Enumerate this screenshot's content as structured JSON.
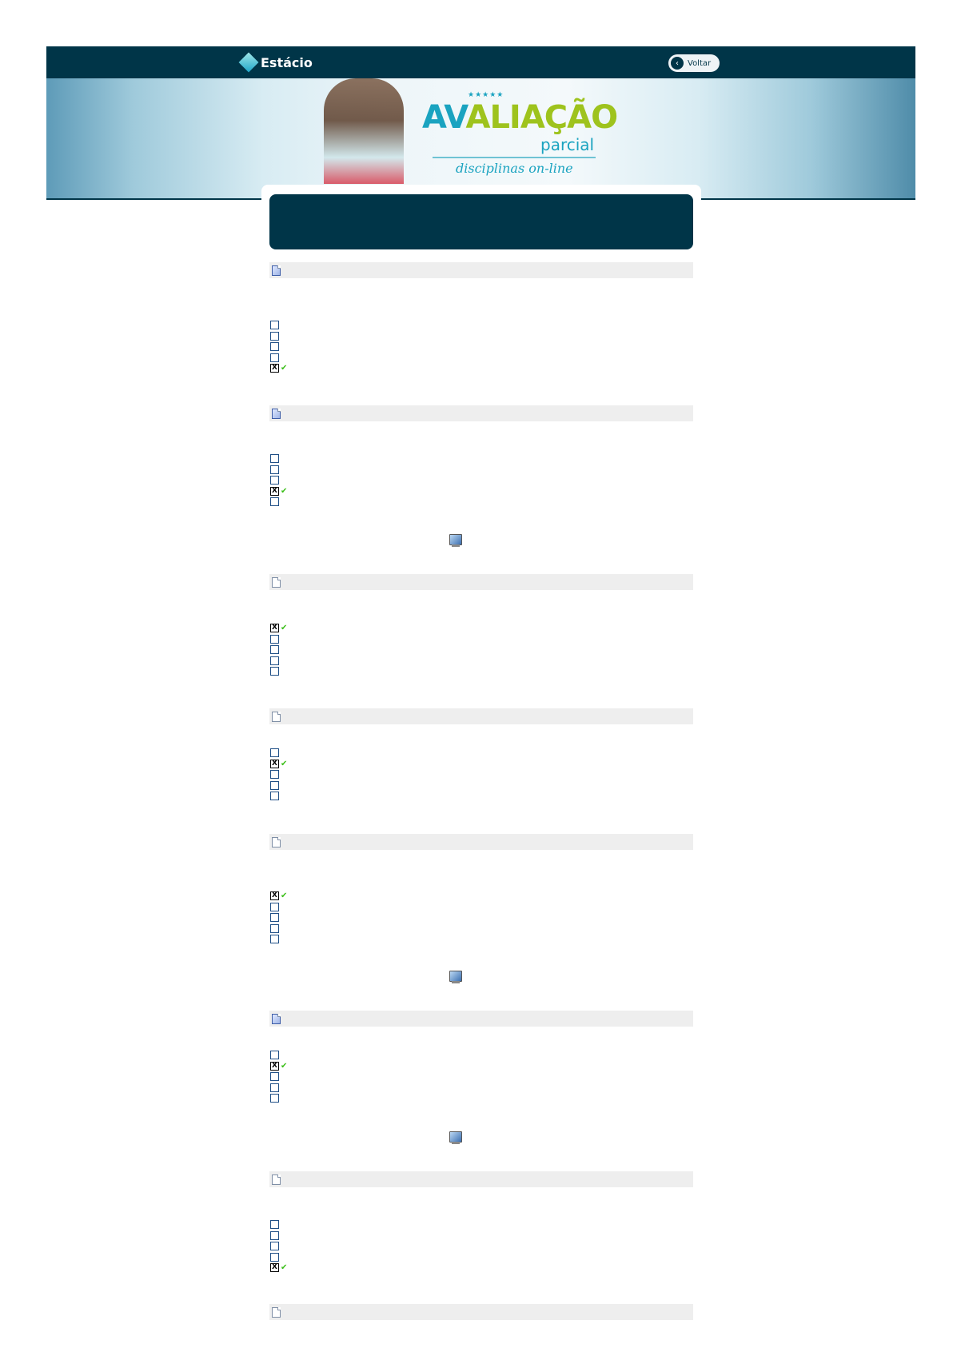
{
  "header": {
    "brand": "Estácio",
    "back_label": "Voltar"
  },
  "banner": {
    "stars": "★★★★★",
    "title_accent": "AV",
    "title_rest": "ALIAÇÃO",
    "subtitle": "parcial",
    "tagline": "disciplinas on-line"
  },
  "colors": {
    "primary": "#003548",
    "accent_green": "#9ec31d",
    "accent_blue": "#1aa3c0",
    "check": "#3cbf1a",
    "question_bar": "#eeeeee"
  },
  "questions": [
    {
      "icon": "document-blue",
      "options": 5,
      "checked": 5,
      "monitor": false
    },
    {
      "icon": "document-blue",
      "options": 5,
      "checked": 4,
      "monitor": true
    },
    {
      "icon": "document-gray",
      "options": 5,
      "checked": 1,
      "monitor": false
    },
    {
      "icon": "document-gray",
      "options": 5,
      "checked": 2,
      "monitor": false
    },
    {
      "icon": "document-gray",
      "options": 5,
      "checked": 1,
      "monitor": true
    },
    {
      "icon": "document-blue",
      "options": 5,
      "checked": 2,
      "monitor": true
    },
    {
      "icon": "document-gray",
      "options": 5,
      "checked": 5,
      "monitor": false
    },
    {
      "icon": "document-gray",
      "options": 0,
      "checked": 0,
      "monitor": false
    }
  ]
}
